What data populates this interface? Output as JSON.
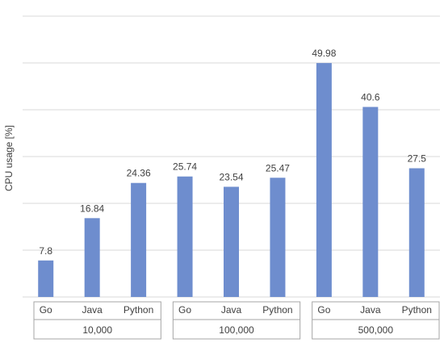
{
  "chart_data": {
    "type": "bar",
    "title": "",
    "xlabel": "",
    "ylabel": "CPU usage [%]",
    "ylim": [
      0,
      60
    ],
    "grid": true,
    "legend": "none",
    "bar_color": "#6e8dce",
    "groups": [
      "10,000",
      "100,000",
      "500,000"
    ],
    "categories": [
      "Go",
      "Java",
      "Python",
      "Go",
      "Java",
      "Python",
      "Go",
      "Java",
      "Python"
    ],
    "group_of_category": [
      0,
      0,
      0,
      1,
      1,
      1,
      2,
      2,
      2
    ],
    "values": [
      7.8,
      16.84,
      24.36,
      25.74,
      23.54,
      25.47,
      49.98,
      40.6,
      27.5
    ],
    "data_labels": [
      "7.8",
      "16.84",
      "24.36",
      "25.74",
      "23.54",
      "25.47",
      "49.98",
      "40.6",
      "27.5"
    ]
  }
}
